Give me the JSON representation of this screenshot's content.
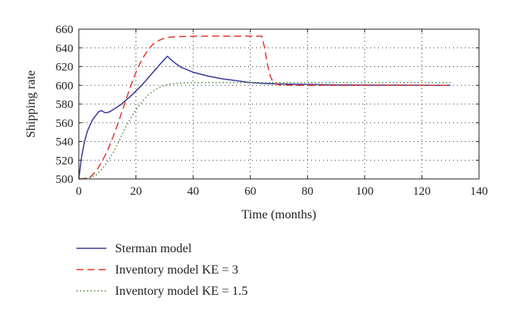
{
  "chart_data": {
    "type": "line",
    "title": "",
    "xlabel": "Time (months)",
    "ylabel": "Shipping rate",
    "xlim": [
      0,
      140
    ],
    "ylim": [
      500,
      660
    ],
    "xticks": [
      0,
      20,
      40,
      60,
      80,
      100,
      120,
      140
    ],
    "yticks": [
      500,
      520,
      540,
      560,
      580,
      600,
      620,
      640,
      660
    ],
    "grid": true,
    "legend_position": "below",
    "series": [
      {
        "name": "Sterman model",
        "color": "#3b3b9a",
        "style": "solid",
        "x": [
          0,
          1,
          2,
          3,
          4,
          5,
          6,
          7,
          8,
          9,
          10,
          11,
          12,
          13,
          14,
          15,
          16,
          18,
          20,
          22,
          24,
          26,
          28,
          30,
          31,
          32,
          34,
          36,
          40,
          45,
          50,
          55,
          60,
          65,
          70,
          80,
          90,
          100,
          110,
          120,
          130
        ],
        "values": [
          500,
          524,
          540,
          551,
          558,
          564,
          568,
          572,
          573,
          571,
          571,
          572,
          574,
          576,
          578,
          580,
          583,
          588,
          594,
          600,
          607,
          614,
          621,
          628,
          631,
          628,
          623,
          619,
          614,
          610,
          607,
          605,
          603,
          602,
          601.5,
          601,
          600.5,
          600.3,
          600.2,
          600.1,
          600
        ]
      },
      {
        "name": "Inventory model KE = 3",
        "color": "#e8382d",
        "style": "dashed",
        "x": [
          0,
          2,
          4,
          6,
          8,
          10,
          12,
          14,
          16,
          18,
          20,
          22,
          24,
          26,
          28,
          30,
          32,
          35,
          40,
          50,
          60,
          64,
          65,
          66,
          67,
          68,
          70,
          75,
          80,
          100,
          120,
          130
        ],
        "values": [
          500,
          500.5,
          502,
          508,
          518,
          530,
          545,
          562,
          580,
          598,
          614,
          627,
          637,
          644,
          648,
          650.5,
          651.5,
          652,
          652.5,
          652.5,
          652.5,
          652.5,
          640,
          622,
          610,
          603,
          600.5,
          600,
          600,
          600,
          600,
          600
        ]
      },
      {
        "name": "Inventory model KE = 1.5",
        "color": "#4f8a3c",
        "style": "dotted",
        "x": [
          0,
          2,
          4,
          6,
          8,
          10,
          12,
          14,
          16,
          18,
          20,
          22,
          24,
          26,
          28,
          30,
          32,
          35,
          40,
          45,
          50,
          60,
          70,
          80,
          100,
          120,
          130
        ],
        "values": [
          500,
          500.5,
          501.5,
          504,
          510,
          518,
          528,
          540,
          553,
          564,
          574,
          582,
          589,
          594,
          597.5,
          600,
          601.5,
          602.5,
          603,
          603,
          603,
          603,
          603,
          603,
          603,
          603,
          603
        ]
      }
    ]
  }
}
